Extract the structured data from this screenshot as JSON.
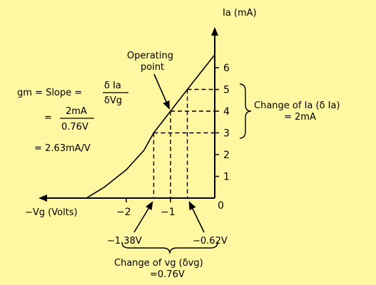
{
  "axes": {
    "y_label": "Ia (mA)",
    "x_label": "−Vg (Volts)",
    "y_ticks": [
      "1",
      "2",
      "3",
      "4",
      "5",
      "6"
    ],
    "x_ticks": [
      "−2",
      "−1",
      "0"
    ]
  },
  "curve": {
    "color": "#000000",
    "points": [
      {
        "vg": -2.9,
        "ia": 0.0
      },
      {
        "vg": -2.5,
        "ia": 0.5
      },
      {
        "vg": -2.0,
        "ia": 1.3
      },
      {
        "vg": -1.6,
        "ia": 2.2
      },
      {
        "vg": -1.38,
        "ia": 3.0
      },
      {
        "vg": -1.0,
        "ia": 4.0
      },
      {
        "vg": -0.62,
        "ia": 5.0
      },
      {
        "vg": 0.0,
        "ia": 6.6
      }
    ]
  },
  "operating_point": {
    "label_line1": "Operating",
    "label_line2": "point",
    "vg": -1.0,
    "ia": 4.0
  },
  "markers": {
    "vg_low": -1.38,
    "vg_high": -0.62,
    "ia_low": 3.0,
    "ia_high": 5.0,
    "vg_low_label": "−1.38V",
    "vg_high_label": "−0.62V"
  },
  "equation": {
    "line1_lhs": "gm  =  Slope  =",
    "line1_num": "δ Ia",
    "line1_den": "δVg",
    "line2_eq": "=",
    "line2_num": "2mA",
    "line2_den": "0.76V",
    "line3": "=  2.63mA/V"
  },
  "annotation_ia": {
    "line1": "Change of Ia (δ Ia)",
    "line2": "=  2mA"
  },
  "annotation_vg": {
    "line1": "Change of vg  (δvg)",
    "line2": "=0.76V"
  }
}
